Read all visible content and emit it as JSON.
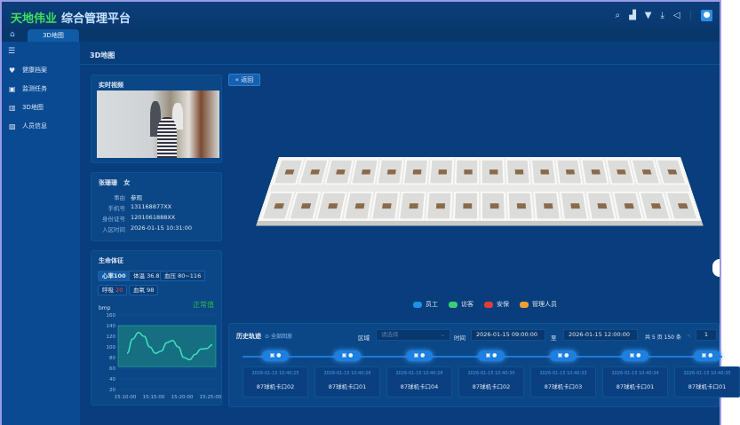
{
  "header": {
    "brand": "天地伟业",
    "title": "综合管理平台",
    "icons": [
      "search-icon",
      "chart-icon",
      "shirt-icon",
      "download-icon",
      "send-icon",
      "user-avatar-icon"
    ]
  },
  "tabs": [
    {
      "label": "3D地图"
    }
  ],
  "sidebar": {
    "items": [
      {
        "label": "健康档案",
        "icon": "heart-icon"
      },
      {
        "label": "监测任务",
        "icon": "task-icon"
      },
      {
        "label": "3D地图",
        "icon": "map-icon"
      },
      {
        "label": "人员信息",
        "icon": "person-icon"
      }
    ]
  },
  "page": {
    "title": "3D地图"
  },
  "video": {
    "title": "实时视频"
  },
  "person": {
    "name": "张珊珊",
    "gender": "女",
    "fields": [
      {
        "k": "事由",
        "v": "参观"
      },
      {
        "k": "手机号",
        "v": "131168877XX"
      },
      {
        "k": "身份证号",
        "v": "1201061888XX"
      },
      {
        "k": "入区时间",
        "v": "2026-01-15  10:31:00"
      }
    ]
  },
  "vitals": {
    "title": "生命体征",
    "items": [
      {
        "label": "心率",
        "value": "100",
        "active": true
      },
      {
        "label": "体温",
        "value": "36.8"
      },
      {
        "label": "血压",
        "value": "80~116"
      },
      {
        "label": "呼吸",
        "value": "20",
        "alert": true
      },
      {
        "label": "血氧",
        "value": "98"
      }
    ],
    "status": "正常值",
    "status_color": "#2db84a"
  },
  "chart_data": {
    "type": "line",
    "ylabel": "bmp",
    "ylim": [
      20,
      160
    ],
    "yticks": [
      160,
      140,
      120,
      100,
      80,
      60,
      40,
      20
    ],
    "xticks": [
      "15:10:00",
      "15:15:00",
      "15:20:00",
      "15:25:00"
    ],
    "normal_band": [
      63,
      140
    ],
    "x": [
      0,
      1,
      2,
      3,
      4,
      5,
      6,
      7,
      8,
      9,
      10,
      11,
      12,
      13,
      14,
      15
    ],
    "values": [
      88,
      115,
      127,
      120,
      100,
      88,
      92,
      108,
      112,
      100,
      80,
      76,
      86,
      96,
      97,
      104
    ],
    "line_color": "#3fe0c0"
  },
  "map": {
    "back_label": "返回",
    "legend": [
      {
        "label": "员工",
        "color": "#1e90e8"
      },
      {
        "label": "访客",
        "color": "#3ad07a"
      },
      {
        "label": "安保",
        "color": "#e23b3b"
      },
      {
        "label": "管理人员",
        "color": "#f0a030"
      }
    ]
  },
  "history": {
    "title": "历史轨迹",
    "replay_label": "全部回放",
    "area_label": "区域",
    "area_placeholder": "请选择",
    "time_label": "时间",
    "start": "2026-01-15  09:00:00",
    "to": "至",
    "end": "2026-01-15  12:00:00",
    "pager": "共 5 页 150 条",
    "page": "1",
    "prev": "<",
    "records": [
      {
        "time": "2026-01-15  10:40:25",
        "place": "87球机卡口02"
      },
      {
        "time": "2026-01-15  10:40:26",
        "place": "87球机卡口01"
      },
      {
        "time": "2026-01-15  10:40:28",
        "place": "87球机卡口04"
      },
      {
        "time": "2026-01-15  10:40:30",
        "place": "87球机卡口02"
      },
      {
        "time": "2026-01-15  10:40:33",
        "place": "87球机卡口03"
      },
      {
        "time": "2026-01-15  10:40:34",
        "place": "87球机卡口01"
      },
      {
        "time": "2026-01-15  10:40:35",
        "place": "87球机卡口01"
      }
    ]
  }
}
